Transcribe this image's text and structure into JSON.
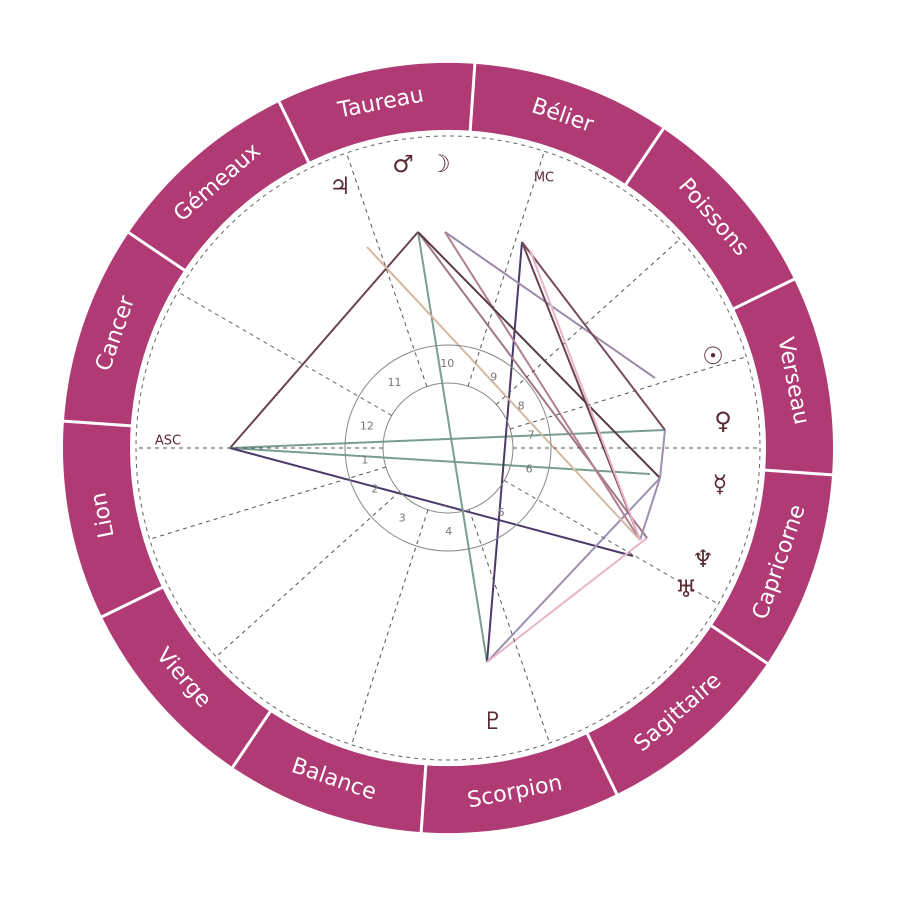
{
  "signs": [
    "Bélier",
    "Taureau",
    "Gémeaux",
    "Cancer",
    "Lion",
    "Vierge",
    "Balance",
    "Scorpion",
    "Sagittaire",
    "Capricorne",
    "Verseau",
    "Poissons"
  ],
  "houses": [
    1,
    2,
    3,
    4,
    5,
    6,
    7,
    8,
    9,
    10,
    11,
    12
  ],
  "planets": [
    "♃",
    "♂",
    "☽",
    "☉",
    "♀",
    "☿",
    "♆",
    "♅",
    "♇"
  ],
  "angles": {
    "asc": "ASC",
    "mc": "MC"
  }
}
